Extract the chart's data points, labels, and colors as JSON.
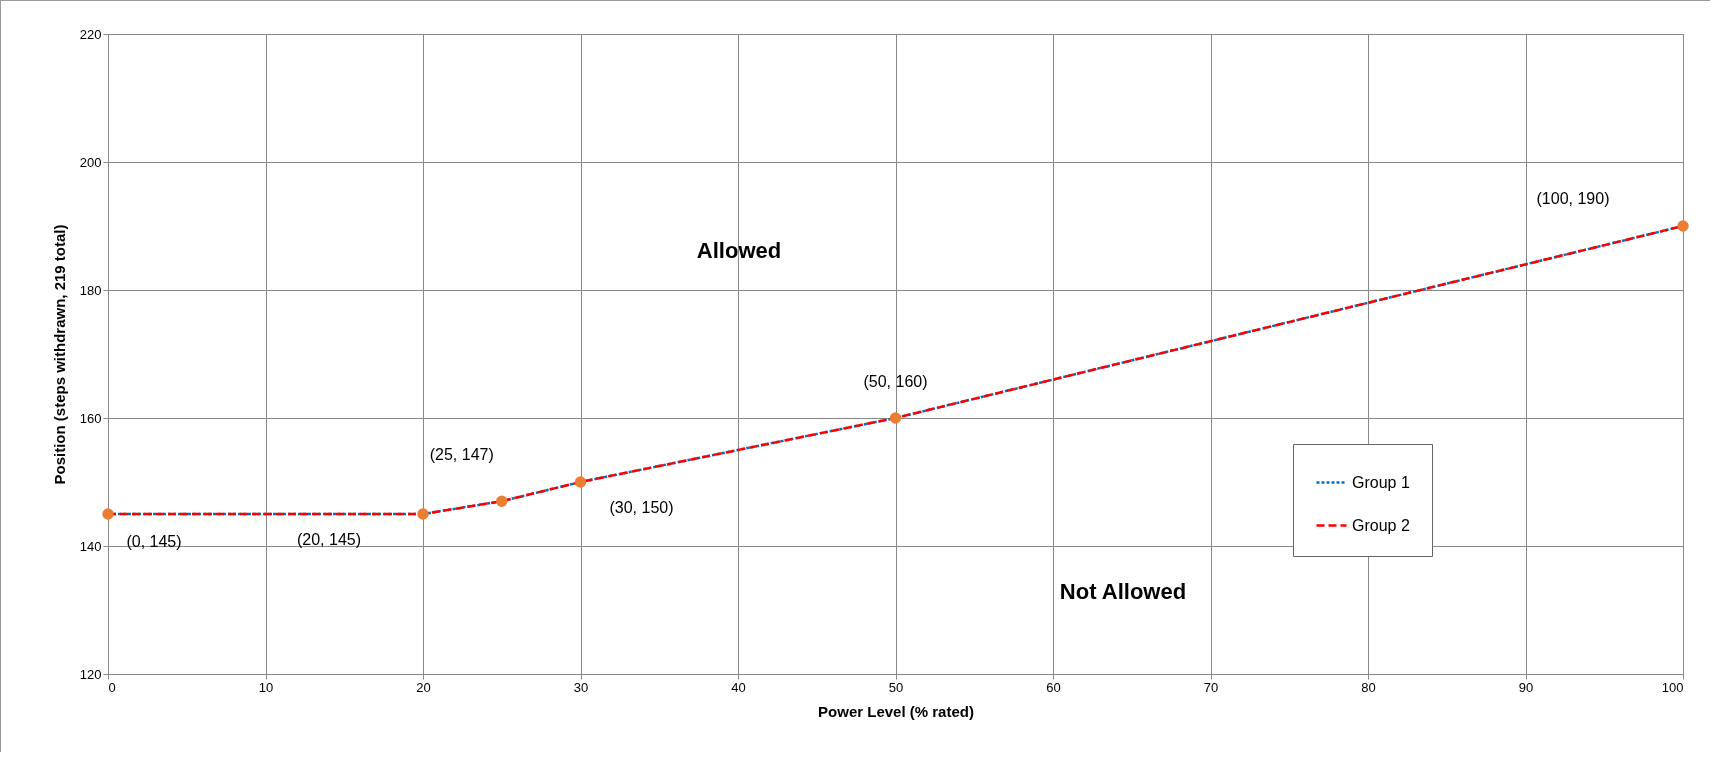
{
  "chart_data": {
    "type": "line",
    "xlabel": "Power Level (% rated)",
    "ylabel": "Position (steps withdrawn, 219 total)",
    "x": [
      0,
      20,
      25,
      30,
      50,
      100
    ],
    "series": [
      {
        "name": "Group 1",
        "color": "#0070c0",
        "line_style": "dotted",
        "values": [
          145,
          145,
          147,
          150,
          160,
          190
        ]
      },
      {
        "name": "Group 2",
        "color": "#ff0000",
        "line_style": "dashed",
        "values": [
          145,
          145,
          147,
          150,
          160,
          190
        ]
      },
      {
        "type": "scatter",
        "color": "#ed7d31",
        "marker": "circle",
        "values": [
          145,
          145,
          147,
          150,
          160,
          190
        ]
      }
    ],
    "xlim": [
      0,
      100
    ],
    "xticks": [
      0,
      10,
      20,
      30,
      40,
      50,
      60,
      70,
      80,
      90,
      100
    ],
    "ylim": [
      120,
      220
    ],
    "yticks": [
      120,
      140,
      160,
      180,
      200,
      220
    ],
    "grid": true,
    "legend": "right",
    "annotations": [
      {
        "text": "(0, 145)",
        "x": 0,
        "y": 145
      },
      "(20, 145)",
      {
        "text": "(25, 147)",
        "x": 25,
        "y": 147
      },
      {
        "text": "(30, 150)",
        "x": 30,
        "y": 150
      },
      {
        "text": "(50, 160)",
        "x": 50,
        "y": 160
      },
      "(100, 190)",
      "Allowed",
      "Not Allowed"
    ]
  }
}
